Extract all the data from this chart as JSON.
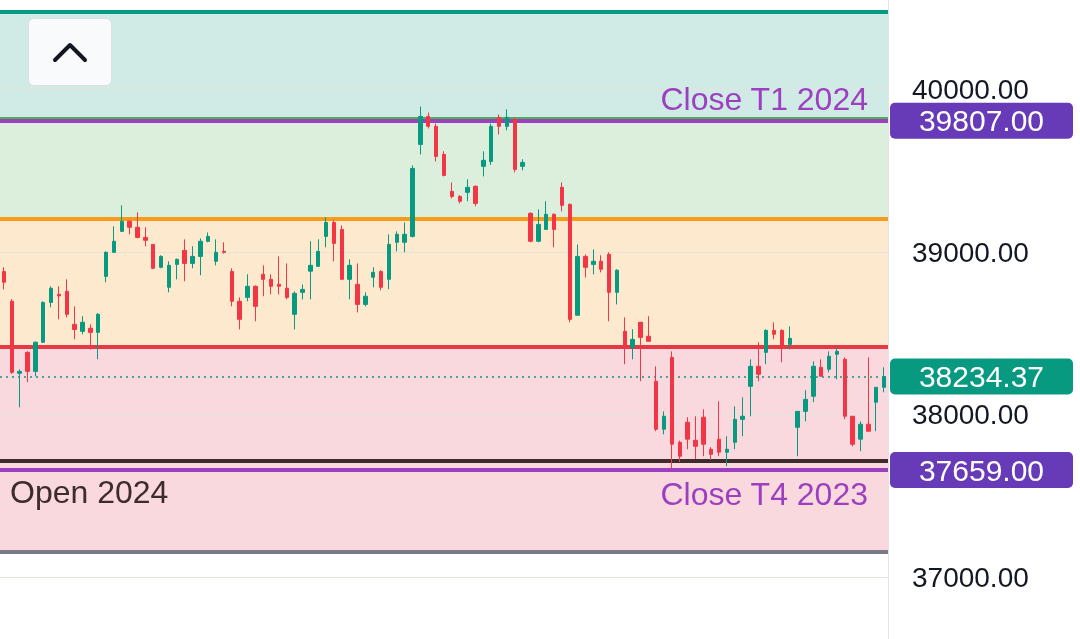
{
  "chart_data": {
    "type": "candlestick",
    "categories": [
      null,
      null,
      null,
      null,
      null,
      null,
      null,
      null,
      null,
      null,
      null,
      null,
      null,
      null,
      null,
      null,
      null,
      null,
      null,
      null,
      null,
      null,
      null,
      null,
      null,
      null,
      null,
      null,
      null,
      null,
      null,
      null,
      null,
      null,
      null,
      null,
      null,
      null,
      null,
      null,
      null,
      null,
      null,
      null,
      null,
      null,
      null,
      null,
      null,
      null,
      null,
      null,
      null,
      null,
      null,
      null,
      null,
      null,
      null,
      null,
      null,
      null,
      null,
      null,
      null,
      null,
      null,
      null,
      null,
      null,
      null,
      null,
      null,
      null,
      null,
      null,
      null,
      null,
      null,
      null,
      null,
      null,
      null,
      null,
      null,
      null,
      null,
      null,
      null,
      null,
      null,
      null,
      null,
      null,
      null,
      null,
      null,
      null,
      null,
      null,
      null,
      null,
      null,
      null,
      null,
      null,
      null,
      null,
      null,
      null,
      null,
      null,
      null
    ],
    "ohlc": [
      [
        38880,
        38906,
        38770,
        38814
      ],
      [
        38697,
        38710,
        38250,
        38260
      ],
      [
        38254,
        38278,
        38045,
        38266
      ],
      [
        38383,
        38390,
        38199,
        38266
      ],
      [
        38266,
        38450,
        38236,
        38445
      ],
      [
        38445,
        38697,
        38440,
        38690
      ],
      [
        38690,
        38789,
        38660,
        38777
      ],
      [
        38740,
        38789,
        38586,
        38730
      ],
      [
        38758,
        38832,
        38598,
        38617
      ],
      [
        38555,
        38666,
        38463,
        38524
      ],
      [
        38512,
        38605,
        38494,
        38568
      ],
      [
        38531,
        38555,
        38401,
        38506
      ],
      [
        38506,
        38625,
        38340,
        38617
      ],
      [
        38850,
        39005,
        38814,
        38998
      ],
      [
        38998,
        39158,
        38998,
        39066
      ],
      [
        39127,
        39287,
        39127,
        39189
      ],
      [
        39189,
        39195,
        39109,
        39152
      ],
      [
        39152,
        39244,
        39084,
        39090
      ],
      [
        39090,
        39152,
        39035,
        39072
      ],
      [
        39047,
        39047,
        38895,
        38900
      ],
      [
        38906,
        38980,
        38900,
        38973
      ],
      [
        38783,
        38943,
        38752,
        38918
      ],
      [
        38924,
        38960,
        38832,
        38955
      ],
      [
        39010,
        39078,
        38820,
        38930
      ],
      [
        38930,
        39035,
        38900,
        38973
      ],
      [
        38973,
        39084,
        38857,
        39066
      ],
      [
        39066,
        39120,
        39060,
        39096
      ],
      [
        38943,
        39078,
        38918,
        38998
      ],
      [
        39004,
        39060,
        38990,
        38998
      ],
      [
        38880,
        38900,
        38666,
        38697
      ],
      [
        38697,
        38721,
        38524,
        38586
      ],
      [
        38721,
        38863,
        38697,
        38789
      ],
      [
        38789,
        38795,
        38574,
        38666
      ],
      [
        38863,
        38918,
        38728,
        38832
      ],
      [
        38832,
        38863,
        38740,
        38789
      ],
      [
        38802,
        38973,
        38740,
        38789
      ],
      [
        38777,
        38930,
        38709,
        38721
      ],
      [
        38617,
        38758,
        38524,
        38746
      ],
      [
        38752,
        38801,
        38709,
        38770
      ],
      [
        38882,
        39066,
        38709,
        38918
      ],
      [
        38912,
        39078,
        38912,
        39004
      ],
      [
        39096,
        39213,
        39029,
        39182
      ],
      [
        39182,
        39195,
        38943,
        39053
      ],
      [
        39139,
        39164,
        38832,
        38832
      ],
      [
        38832,
        38955,
        38709,
        38918
      ],
      [
        38801,
        38930,
        38629,
        38678
      ],
      [
        38678,
        38752,
        38666,
        38728
      ],
      [
        38845,
        38906,
        38783,
        38875
      ],
      [
        38880,
        38888,
        38765,
        38783
      ],
      [
        38832,
        39109,
        38771,
        39047
      ],
      [
        39060,
        39127,
        39004,
        39109
      ],
      [
        39060,
        39182,
        38998,
        39109
      ],
      [
        39096,
        39533,
        39090,
        39514
      ],
      [
        39662,
        39895,
        39600,
        39834
      ],
      [
        39834,
        39858,
        39760,
        39773
      ],
      [
        39773,
        39790,
        39557,
        39588
      ],
      [
        39600,
        39620,
        39465,
        39471
      ],
      [
        39373,
        39428,
        39330,
        39342
      ],
      [
        39342,
        39350,
        39299,
        39312
      ],
      [
        39367,
        39447,
        39312,
        39398
      ],
      [
        39404,
        39410,
        39281,
        39299
      ],
      [
        39527,
        39619,
        39465,
        39564
      ],
      [
        39557,
        39790,
        39536,
        39773
      ],
      [
        39828,
        39846,
        39723,
        39773
      ],
      [
        39773,
        39877,
        39748,
        39828
      ],
      [
        39816,
        39828,
        39490,
        39508
      ],
      [
        39527,
        39570,
        39502,
        39551
      ],
      [
        39238,
        39244,
        39060,
        39066
      ],
      [
        39066,
        39262,
        39060,
        39170
      ],
      [
        39139,
        39312,
        39139,
        39232
      ],
      [
        39232,
        39238,
        39029,
        39139
      ],
      [
        39398,
        39428,
        39250,
        39287
      ],
      [
        39293,
        39299,
        38568,
        38586
      ],
      [
        38611,
        39047,
        38611,
        38973
      ],
      [
        38973,
        38985,
        38844,
        38906
      ],
      [
        38924,
        39016,
        38863,
        38943
      ],
      [
        38943,
        38980,
        38875,
        38894
      ],
      [
        38986,
        38998,
        38574,
        38752
      ],
      [
        38752,
        38894,
        38678,
        38888
      ],
      [
        38512,
        38598,
        38310,
        38420
      ],
      [
        38414,
        38525,
        38340,
        38463
      ],
      [
        38568,
        38568,
        38205,
        38475
      ],
      [
        38482,
        38605,
        38451,
        38451
      ],
      [
        38205,
        38297,
        37898,
        37910
      ],
      [
        37910,
        38020,
        37879,
        37990
      ],
      [
        38352,
        38389,
        37665,
        37818
      ],
      [
        37830,
        37840,
        37707,
        37744
      ],
      [
        37953,
        37984,
        37787,
        37849
      ],
      [
        37842,
        37990,
        37726,
        37805
      ],
      [
        37984,
        38033,
        37744,
        37818
      ],
      [
        37787,
        37800,
        37720,
        37756
      ],
      [
        37849,
        38082,
        37744,
        37769
      ],
      [
        37769,
        37867,
        37683,
        37787
      ],
      [
        37830,
        38051,
        37787,
        37971
      ],
      [
        37971,
        38107,
        37867,
        37990
      ],
      [
        38174,
        38340,
        37990,
        38297
      ],
      [
        38297,
        38445,
        38205,
        38248
      ],
      [
        38383,
        38525,
        38310,
        38518
      ],
      [
        38518,
        38568,
        38463,
        38494
      ],
      [
        38518,
        38525,
        38322,
        38420
      ],
      [
        38432,
        38543,
        38401,
        38469
      ],
      [
        37922,
        38020,
        37744,
        38020
      ],
      [
        38020,
        38150,
        37959,
        38094
      ],
      [
        38113,
        38328,
        38076,
        38297
      ],
      [
        38291,
        38340,
        38236,
        38236
      ],
      [
        38279,
        38389,
        38260,
        38359
      ],
      [
        38371,
        38408,
        38217,
        38389
      ],
      [
        38340,
        38352,
        37972,
        37990
      ],
      [
        37990,
        37990,
        37805,
        37818
      ],
      [
        37849,
        37959,
        37775,
        37941
      ],
      [
        37941,
        38352,
        37898,
        37898
      ],
      [
        38076,
        38168,
        37898,
        38168
      ],
      [
        38168,
        38291,
        38137,
        38234.37
      ]
    ],
    "ylim": [
      36620,
      40550
    ],
    "yticks": [
      {
        "value": 37000,
        "label": "37000.00"
      },
      {
        "value": 37659,
        "label": "37659.00"
      },
      {
        "value": 38000,
        "label": "38000.00"
      },
      {
        "value": 38234.37,
        "label": "38234.37"
      },
      {
        "value": 39000,
        "label": "39000.00"
      },
      {
        "value": 39807,
        "label": "39807.00"
      },
      {
        "value": 40000,
        "label": "40000.00"
      }
    ],
    "grid": "y",
    "tick_labels": "y",
    "bands": [
      {
        "axis": "y",
        "from": 39820,
        "to": 40480,
        "color": "#d0ebe6"
      },
      {
        "axis": "y",
        "from": 39207,
        "to": 39820,
        "color": "#dcefdc"
      },
      {
        "axis": "y",
        "from": 38420,
        "to": 39207,
        "color": "#fde9cd"
      },
      {
        "axis": "y",
        "from": 37154,
        "to": 38420,
        "color": "#f9d9dd"
      }
    ],
    "ref_lines": [
      {
        "axis": "y",
        "value": 40480,
        "color": "#089981"
      },
      {
        "axis": "y",
        "value": 39820,
        "color": "#4caf50"
      },
      {
        "axis": "y",
        "value": 39807,
        "label": "Close T1 2024",
        "color": "#9c3fc0"
      },
      {
        "axis": "y",
        "value": 39207,
        "color": "#f59c1a"
      },
      {
        "axis": "y",
        "value": 38420,
        "color": "#e53945"
      },
      {
        "axis": "y",
        "value": 38234.37,
        "color": "#089981",
        "line_style": "dotted"
      },
      {
        "axis": "y",
        "value": 37719,
        "label": "Open 2024",
        "color": "#3e2b2e"
      },
      {
        "axis": "y",
        "value": 37659,
        "label": "Close T4 2023",
        "color": "#9c3fc0"
      },
      {
        "axis": "y",
        "value": 37154,
        "color": "#787b86"
      }
    ]
  }
}
